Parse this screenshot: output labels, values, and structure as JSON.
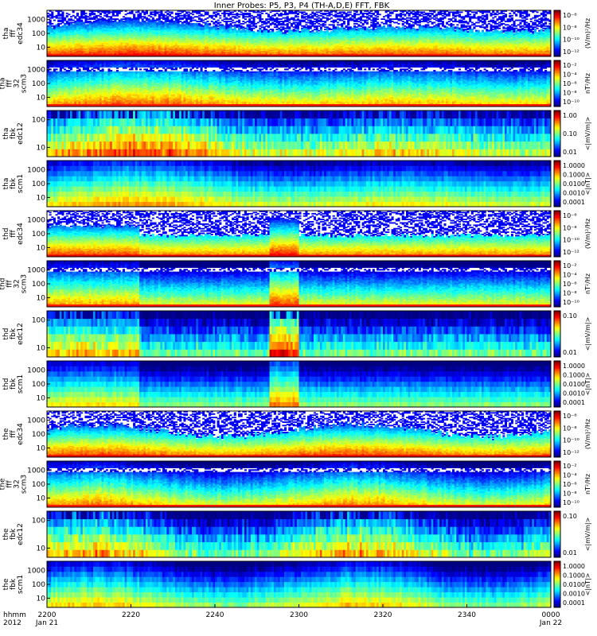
{
  "title": "Inner Probes: P5, P3, P4 (TH-A,D,E) FFT, FBK",
  "chart_data": {
    "type": "heatmap",
    "xaxis": {
      "label_lines": [
        "hhmm",
        "2012"
      ],
      "ticks": [
        {
          "t": 0,
          "label": "2200",
          "date": "Jan 21"
        },
        {
          "t": 20,
          "label": "2220"
        },
        {
          "t": 40,
          "label": "2240"
        },
        {
          "t": 60,
          "label": "2300"
        },
        {
          "t": 80,
          "label": "2320"
        },
        {
          "t": 100,
          "label": "2340"
        },
        {
          "t": 120,
          "label": "0000",
          "date": "Jan 22"
        }
      ],
      "range_minutes": [
        0,
        120
      ]
    },
    "panels": [
      {
        "ylabel": [
          "tha",
          "fff",
          "edc34"
        ],
        "yticks": [
          "1000",
          "100",
          "10"
        ],
        "cbar_label": "(V/m)²/Hz",
        "cbar_ticks": [
          "10⁻⁶",
          "10⁻⁸",
          "10⁻¹⁰",
          "10⁻¹²"
        ],
        "kind": "fff_e"
      },
      {
        "ylabel": [
          "tha",
          "fff",
          "32",
          "scm3"
        ],
        "yticks": [
          "1000",
          "100",
          "10"
        ],
        "cbar_label": "nT²/Hz",
        "cbar_ticks": [
          "10⁻²",
          "10⁻⁴",
          "10⁻⁶",
          "10⁻⁸",
          "10⁻¹⁰"
        ],
        "kind": "fff_b"
      },
      {
        "ylabel": [
          "tha",
          "fbk",
          "edc12"
        ],
        "yticks": [
          "100",
          "10"
        ],
        "cbar_label": "<|mV/m|>",
        "cbar_ticks": [
          "1.00",
          "0.10",
          "0.01"
        ],
        "kind": "fbk_e"
      },
      {
        "ylabel": [
          "tha",
          "fbk",
          "scm1"
        ],
        "yticks": [
          "1000",
          "100",
          "10"
        ],
        "cbar_label": "<|nT|>",
        "cbar_ticks": [
          "1.0000",
          "0.1000",
          "0.0100",
          "0.0010",
          "0.0001"
        ],
        "kind": "fbk_b"
      },
      {
        "ylabel": [
          "thd",
          "fff",
          "edc34"
        ],
        "yticks": [
          "1000",
          "100",
          "10"
        ],
        "cbar_label": "(V/m)²/Hz",
        "cbar_ticks": [
          "10⁻⁶",
          "10⁻⁸",
          "10⁻¹⁰",
          "10⁻¹²"
        ],
        "kind": "fff_e"
      },
      {
        "ylabel": [
          "thd",
          "fff",
          "32",
          "scm3"
        ],
        "yticks": [
          "1000",
          "100",
          "10"
        ],
        "cbar_label": "nT²/Hz",
        "cbar_ticks": [
          "10⁻²",
          "10⁻⁴",
          "10⁻⁶",
          "10⁻⁸",
          "10⁻¹⁰"
        ],
        "kind": "fff_b"
      },
      {
        "ylabel": [
          "thd",
          "fbk",
          "edc12"
        ],
        "yticks": [
          "100",
          "10"
        ],
        "cbar_label": "<|mV/m|>",
        "cbar_ticks": [
          "0.10",
          "0.01"
        ],
        "kind": "fbk_e"
      },
      {
        "ylabel": [
          "thd",
          "fbk",
          "scm1"
        ],
        "yticks": [
          "1000",
          "100",
          "10"
        ],
        "cbar_label": "<|nT|>",
        "cbar_ticks": [
          "1.0000",
          "0.1000",
          "0.0100",
          "0.0010",
          "0.0001"
        ],
        "kind": "fbk_b"
      },
      {
        "ylabel": [
          "the",
          "fff",
          "edc34"
        ],
        "yticks": [
          "1000",
          "100",
          "10"
        ],
        "cbar_label": "(V/m)²/Hz",
        "cbar_ticks": [
          "10⁻⁶",
          "10⁻⁸",
          "10⁻¹⁰",
          "10⁻¹²"
        ],
        "kind": "fff_e"
      },
      {
        "ylabel": [
          "the",
          "fff",
          "32",
          "scm3"
        ],
        "yticks": [
          "1000",
          "100",
          "10"
        ],
        "cbar_label": "nT²/Hz",
        "cbar_ticks": [
          "10⁻²",
          "10⁻⁴",
          "10⁻⁶",
          "10⁻⁸",
          "10⁻¹⁰"
        ],
        "kind": "fff_b"
      },
      {
        "ylabel": [
          "the",
          "fbk",
          "edc12"
        ],
        "yticks": [
          "100",
          "10"
        ],
        "cbar_label": "<|mV/m|>",
        "cbar_ticks": [
          "0.10",
          "0.01"
        ],
        "kind": "fbk_e"
      },
      {
        "ylabel": [
          "the",
          "fbk",
          "scm1"
        ],
        "yticks": [
          "1000",
          "100",
          "10"
        ],
        "cbar_label": "<|nT|>",
        "cbar_ticks": [
          "1.0000",
          "0.1000",
          "0.0100",
          "0.0010",
          "0.0001"
        ],
        "kind": "fbk_b"
      }
    ]
  }
}
